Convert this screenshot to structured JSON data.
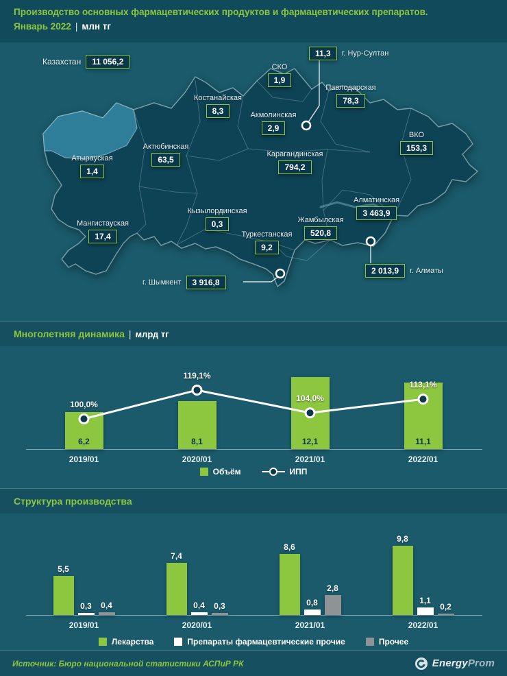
{
  "header": {
    "title": "Производство основных фармацевтических продуктов и фармацевтических препаратов.",
    "period": "Январь 2022",
    "sep": "|",
    "unit": "млн тг"
  },
  "map": {
    "country": {
      "name": "Казахстан",
      "value": "11 056,2"
    },
    "regions": [
      {
        "name": "г. Нур-Султан",
        "value": "11,3"
      },
      {
        "name": "СКО",
        "value": "1,9"
      },
      {
        "name": "Павлодарская",
        "value": "78,3"
      },
      {
        "name": "Костанайская",
        "value": "8,3"
      },
      {
        "name": "Акмолинская",
        "value": "2,9"
      },
      {
        "name": "ВКО",
        "value": "153,3"
      },
      {
        "name": "Актюбинская",
        "value": "63,5"
      },
      {
        "name": "Карагандинская",
        "value": "794,2"
      },
      {
        "name": "Атырауская",
        "value": "1,4"
      },
      {
        "name": "Алматинская",
        "value": "3 463,9"
      },
      {
        "name": "Кызылординская",
        "value": "0,3"
      },
      {
        "name": "Жамбылская",
        "value": "520,8"
      },
      {
        "name": "Мангистауская",
        "value": "17,4"
      },
      {
        "name": "Туркестанская",
        "value": "9,2"
      },
      {
        "name": "г. Алматы",
        "value": "2 013,9"
      },
      {
        "name": "г. Шымкент",
        "value": "3 916,8"
      }
    ]
  },
  "dynamics": {
    "title": "Многолетняя динамика",
    "sep": "|",
    "unit": "млрд тг",
    "legend": {
      "volume": "Объём",
      "ipp": "ИПП"
    }
  },
  "structure": {
    "title": "Структура производства"
  },
  "footer": {
    "source": "Источник: Бюро национальной статистики АСПиР РК",
    "logo": {
      "part1": "Energy",
      "part2": "Prom"
    }
  },
  "colors": {
    "accent_green": "#8DC63F",
    "background": "#1A5A6B",
    "map_fill": "#0E4255",
    "map_highlight": "#2E7E9A",
    "box_bg": "#09384A",
    "series_gray": "#8E9496",
    "series_white": "#FFFFFF"
  },
  "chart_data": [
    {
      "type": "heatmap",
      "subtype": "choropleth-map",
      "title": "Производство по регионам, млн тг (Январь 2022)",
      "values": {
        "Казахстан": 11056.2,
        "г. Нур-Султан": 11.3,
        "СКО": 1.9,
        "Павлодарская": 78.3,
        "Костанайская": 8.3,
        "Акмолинская": 2.9,
        "ВКО": 153.3,
        "Актюбинская": 63.5,
        "Карагандинская": 794.2,
        "Атырауская": 1.4,
        "Алматинская": 3463.9,
        "Кызылординская": 0.3,
        "Жамбылская": 520.8,
        "Мангистауская": 17.4,
        "Туркестанская": 9.2,
        "г. Алматы": 2013.9,
        "г. Шымкент": 3916.8
      }
    },
    {
      "type": "bar",
      "subtype": "bar+line-combo",
      "title": "Многолетняя динамика",
      "ylabel": "млрд тг",
      "categories": [
        "2019/01",
        "2020/01",
        "2021/01",
        "2022/01"
      ],
      "legend_position": "bottom",
      "grid": false,
      "series": [
        {
          "name": "Объём",
          "render": "bar",
          "values": [
            6.2,
            8.1,
            12.1,
            11.1
          ],
          "labels": [
            "6,2",
            "8,1",
            "12,1",
            "11,1"
          ],
          "color": "#8DC63F"
        },
        {
          "name": "ИПП",
          "render": "line",
          "values": [
            100.0,
            119.1,
            104.0,
            113.1
          ],
          "labels": [
            "100,0%",
            "119,1%",
            "104,0%",
            "113,1%"
          ],
          "color": "#FFFFFF"
        }
      ]
    },
    {
      "type": "bar",
      "subtype": "grouped",
      "title": "Структура производства",
      "categories": [
        "2019/01",
        "2020/01",
        "2021/01",
        "2022/01"
      ],
      "legend_position": "bottom",
      "grid": false,
      "series": [
        {
          "name": "Лекарства",
          "values": [
            5.5,
            7.4,
            8.6,
            9.8
          ],
          "labels": [
            "5,5",
            "7,4",
            "8,6",
            "9,8"
          ],
          "color": "#8DC63F"
        },
        {
          "name": "Препараты фармацевтические прочие",
          "values": [
            0.3,
            0.4,
            0.8,
            1.1
          ],
          "labels": [
            "0,3",
            "0,4",
            "0,8",
            "1,1"
          ],
          "color": "#FFFFFF"
        },
        {
          "name": "Прочее",
          "values": [
            0.4,
            0.3,
            2.8,
            0.2
          ],
          "labels": [
            "0,4",
            "0,3",
            "2,8",
            "0,2"
          ],
          "color": "#8E9496"
        }
      ]
    }
  ]
}
